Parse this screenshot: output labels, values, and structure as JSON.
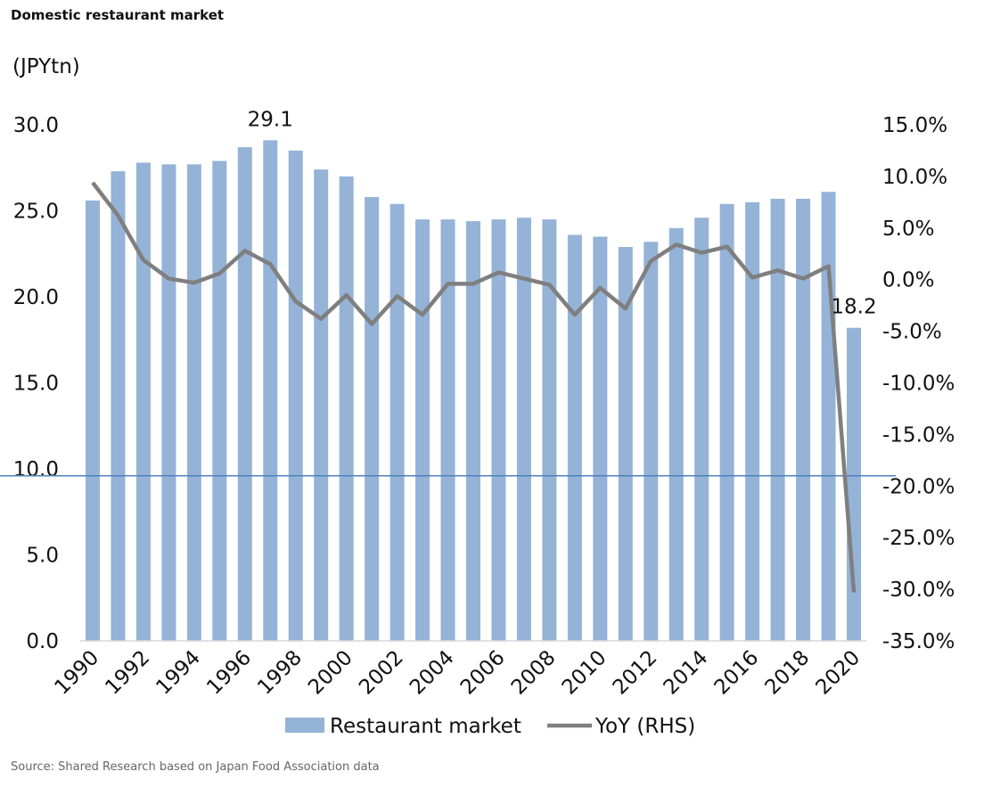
{
  "title": "Domestic restaurant market",
  "source": "Source: Shared Research based on Japan Food Association data",
  "chart_data": {
    "type": "bar",
    "title": "Domestic restaurant market",
    "ylabel": "(JPYtn)",
    "y2label": "YoY (RHS)",
    "categories": [
      "1990",
      "1991",
      "1992",
      "1993",
      "1994",
      "1995",
      "1996",
      "1997",
      "1998",
      "1999",
      "2000",
      "2001",
      "2002",
      "2003",
      "2004",
      "2005",
      "2006",
      "2007",
      "2008",
      "2009",
      "2010",
      "2011",
      "2012",
      "2013",
      "2014",
      "2015",
      "2016",
      "2017",
      "2018",
      "2019",
      "2020"
    ],
    "x_tick_labels": [
      "1990",
      "1992",
      "1994",
      "1996",
      "1998",
      "2000",
      "2002",
      "2004",
      "2006",
      "2008",
      "2010",
      "2012",
      "2014",
      "2016",
      "2018",
      "2020"
    ],
    "series": [
      {
        "name": "Restaurant market",
        "type": "bar",
        "axis": "left",
        "color": "#95b3d7",
        "values": [
          25.6,
          27.3,
          27.8,
          27.7,
          27.7,
          27.9,
          28.7,
          29.1,
          28.5,
          27.4,
          27.0,
          25.8,
          25.4,
          24.5,
          24.5,
          24.4,
          24.5,
          24.6,
          24.5,
          23.6,
          23.5,
          22.9,
          23.2,
          24.0,
          24.6,
          25.4,
          25.5,
          25.7,
          25.7,
          26.1,
          18.2
        ]
      },
      {
        "name": "YoY (RHS)",
        "type": "line",
        "axis": "right",
        "color": "#7f7f7f",
        "values": [
          9.4,
          6.2,
          1.9,
          0.1,
          -0.3,
          0.6,
          2.8,
          1.5,
          -2.1,
          -3.8,
          -1.5,
          -4.3,
          -1.6,
          -3.4,
          -0.4,
          -0.4,
          0.7,
          0.1,
          -0.5,
          -3.4,
          -0.8,
          -2.8,
          1.8,
          3.4,
          2.6,
          3.2,
          0.2,
          0.9,
          0.1,
          1.3,
          -30.3
        ]
      }
    ],
    "ylim": [
      0,
      30
    ],
    "y_ticks": [
      "0.0",
      "5.0",
      "10.0",
      "15.0",
      "20.0",
      "25.0",
      "30.0"
    ],
    "y2lim": [
      -35,
      15
    ],
    "y2_ticks": [
      "-35.0%",
      "-30.0%",
      "-25.0%",
      "-20.0%",
      "-15.0%",
      "-10.0%",
      "-5.0%",
      "0.0%",
      "5.0%",
      "10.0%",
      "15.0%"
    ],
    "annotations": [
      {
        "x": "1997",
        "text": "29.1"
      },
      {
        "x": "2020",
        "text": "18.2"
      }
    ],
    "reference_line": {
      "axis": "left",
      "value": 9.6,
      "color": "#4f81bd"
    },
    "grid": false,
    "legend": "bottom"
  }
}
